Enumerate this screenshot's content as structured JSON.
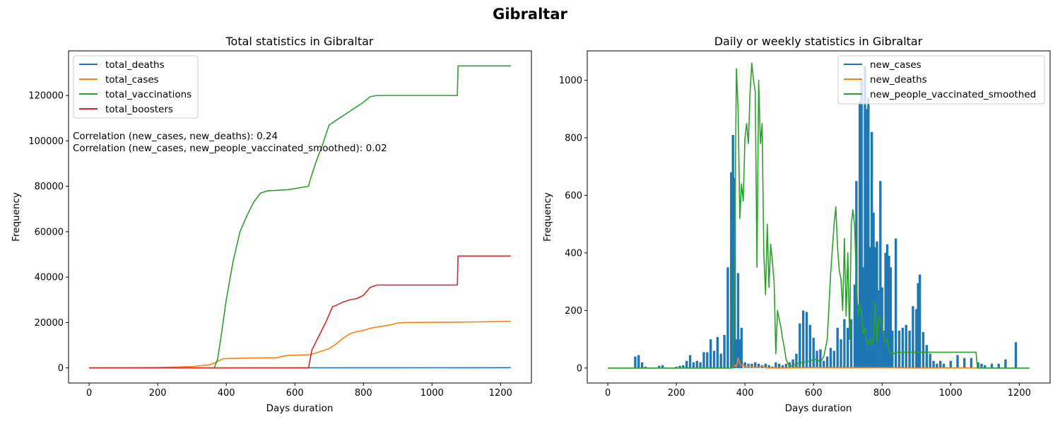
{
  "figure": {
    "title": "Gibraltar"
  },
  "chart_data": [
    {
      "type": "line",
      "title": "Total statistics in Gibraltar",
      "xlabel": "Days duration",
      "ylabel": "Frequency",
      "xlim": [
        -60,
        1290
      ],
      "ylim": [
        -6650,
        139650
      ],
      "xticks": [
        0,
        200,
        400,
        600,
        800,
        1000,
        1200
      ],
      "yticks": [
        0,
        20000,
        40000,
        60000,
        80000,
        100000,
        120000
      ],
      "grid": false,
      "legend_position": "upper-left",
      "annotations": [
        "Correlation (new_cases, new_deaths): 0.24",
        "Correlation (new_cases, new_people_vaccinated_smoothed): 0.02"
      ],
      "series": [
        {
          "name": "total_deaths",
          "color": "#1f77b4",
          "x": [
            0,
            300,
            380,
            1230
          ],
          "y": [
            0,
            0,
            0,
            100
          ]
        },
        {
          "name": "total_cases",
          "color": "#ff7f0e",
          "x": [
            0,
            200,
            300,
            350,
            370,
            390,
            410,
            450,
            550,
            560,
            580,
            640,
            660,
            680,
            700,
            720,
            740,
            760,
            780,
            800,
            820,
            840,
            880,
            900,
            920,
            1000,
            1100,
            1230
          ],
          "y": [
            0,
            200,
            600,
            1300,
            2500,
            4000,
            4200,
            4300,
            4500,
            5000,
            5500,
            5800,
            6500,
            7500,
            8500,
            10500,
            13000,
            15000,
            16000,
            16500,
            17500,
            18000,
            19000,
            19800,
            20000,
            20100,
            20200,
            20500
          ]
        },
        {
          "name": "total_vaccinations",
          "color": "#2ca02c",
          "x": [
            0,
            365,
            375,
            385,
            400,
            420,
            440,
            460,
            480,
            500,
            520,
            580,
            640,
            645,
            660,
            680,
            700,
            720,
            740,
            760,
            780,
            800,
            820,
            840,
            900,
            1000,
            1074,
            1076,
            1230
          ],
          "y": [
            0,
            0,
            4000,
            14000,
            30000,
            47000,
            60000,
            67000,
            73000,
            77000,
            78000,
            78500,
            80000,
            83000,
            90000,
            98000,
            107000,
            109000,
            111000,
            113000,
            115000,
            117000,
            119500,
            120000,
            120000,
            120000,
            120000,
            133000,
            133000
          ]
        },
        {
          "name": "total_boosters",
          "color": "#d62728",
          "x": [
            0,
            640,
            650,
            670,
            690,
            710,
            720,
            740,
            760,
            780,
            800,
            820,
            840,
            900,
            1000,
            1074,
            1076,
            1230
          ],
          "y": [
            0,
            0,
            8000,
            14000,
            20000,
            27000,
            27500,
            29000,
            30000,
            30500,
            32000,
            35500,
            36500,
            36500,
            36500,
            36500,
            49300,
            49300
          ]
        }
      ]
    },
    {
      "type": "bar+line",
      "title": "Daily or weekly statistics in Gibraltar",
      "xlabel": "Days duration",
      "ylabel": "Frequency",
      "xlim": [
        -60,
        1290
      ],
      "ylim": [
        -52,
        1102
      ],
      "xticks": [
        0,
        200,
        400,
        600,
        800,
        1000,
        1200
      ],
      "yticks": [
        0,
        200,
        400,
        600,
        800,
        1000
      ],
      "grid": false,
      "legend_position": "upper-right",
      "series": [
        {
          "name": "new_cases",
          "color": "#1f77b4",
          "kind": "bar",
          "x": [
            80,
            90,
            100,
            110,
            150,
            160,
            200,
            210,
            220,
            230,
            240,
            250,
            260,
            270,
            280,
            290,
            300,
            310,
            320,
            330,
            340,
            350,
            360,
            365,
            370,
            375,
            380,
            385,
            390,
            400,
            410,
            420,
            430,
            440,
            450,
            460,
            470,
            480,
            490,
            500,
            510,
            520,
            530,
            540,
            550,
            560,
            570,
            580,
            590,
            600,
            610,
            620,
            630,
            640,
            650,
            660,
            670,
            680,
            690,
            700,
            710,
            720,
            725,
            730,
            735,
            740,
            745,
            750,
            755,
            760,
            765,
            770,
            775,
            780,
            785,
            790,
            795,
            800,
            805,
            810,
            815,
            820,
            825,
            830,
            840,
            850,
            860,
            870,
            880,
            890,
            900,
            905,
            910,
            920,
            930,
            940,
            950,
            960,
            970,
            980,
            1000,
            1020,
            1040,
            1060,
            1080,
            1090,
            1100,
            1120,
            1140,
            1160,
            1190
          ],
          "y": [
            40,
            45,
            20,
            5,
            8,
            10,
            5,
            8,
            10,
            25,
            45,
            20,
            25,
            20,
            55,
            55,
            100,
            60,
            108,
            50,
            115,
            350,
            680,
            810,
            660,
            100,
            330,
            100,
            140,
            20,
            15,
            15,
            20,
            15,
            10,
            15,
            10,
            5,
            20,
            15,
            10,
            15,
            20,
            30,
            50,
            155,
            200,
            195,
            150,
            105,
            60,
            65,
            25,
            40,
            70,
            60,
            140,
            100,
            170,
            140,
            170,
            290,
            650,
            220,
            925,
            1000,
            350,
            1050,
            900,
            940,
            420,
            820,
            540,
            420,
            440,
            270,
            650,
            280,
            130,
            400,
            430,
            390,
            350,
            130,
            450,
            130,
            140,
            150,
            130,
            215,
            205,
            295,
            325,
            125,
            80,
            50,
            25,
            15,
            25,
            15,
            25,
            45,
            35,
            35,
            20,
            15,
            10,
            15,
            15,
            30,
            90
          ]
        },
        {
          "name": "new_deaths",
          "color": "#ff7f0e",
          "kind": "line",
          "x": [
            0,
            360,
            370,
            375,
            380,
            385,
            390,
            395,
            400,
            420,
            440,
            450,
            460,
            500,
            600,
            700,
            800,
            900,
            1000,
            1100,
            1230
          ],
          "y": [
            0,
            0,
            10,
            5,
            35,
            15,
            8,
            12,
            2,
            5,
            3,
            6,
            1,
            0,
            2,
            1,
            2,
            0,
            1,
            0,
            0
          ]
        },
        {
          "name": "new_people_vaccinated_smoothed",
          "color": "#2ca02c",
          "kind": "line",
          "x": [
            0,
            365,
            370,
            375,
            380,
            385,
            390,
            395,
            400,
            405,
            410,
            415,
            420,
            425,
            430,
            435,
            440,
            445,
            450,
            455,
            460,
            465,
            470,
            475,
            480,
            485,
            490,
            495,
            500,
            505,
            510,
            515,
            520,
            530,
            540,
            550,
            570,
            590,
            600,
            610,
            620,
            630,
            640,
            650,
            660,
            665,
            670,
            675,
            680,
            685,
            690,
            695,
            700,
            705,
            710,
            715,
            720,
            725,
            730,
            735,
            740,
            745,
            750,
            755,
            760,
            765,
            770,
            775,
            780,
            785,
            790,
            795,
            800,
            805,
            810,
            815,
            820,
            825,
            830,
            835,
            840,
            900,
            1000,
            1074,
            1078,
            1230
          ],
          "y": [
            0,
            0,
            400,
            1040,
            900,
            520,
            640,
            580,
            800,
            850,
            780,
            960,
            1060,
            1000,
            960,
            350,
            1000,
            780,
            850,
            400,
            255,
            500,
            280,
            430,
            370,
            300,
            50,
            200,
            170,
            140,
            100,
            70,
            30,
            5,
            10,
            15,
            20,
            25,
            30,
            30,
            20,
            40,
            100,
            330,
            500,
            560,
            420,
            340,
            310,
            200,
            450,
            180,
            400,
            100,
            500,
            550,
            490,
            300,
            180,
            220,
            190,
            120,
            140,
            80,
            90,
            100,
            80,
            110,
            230,
            90,
            180,
            170,
            140,
            110,
            90,
            100,
            60,
            50,
            55,
            50,
            55,
            55,
            55,
            55,
            0,
            0
          ]
        }
      ]
    }
  ]
}
